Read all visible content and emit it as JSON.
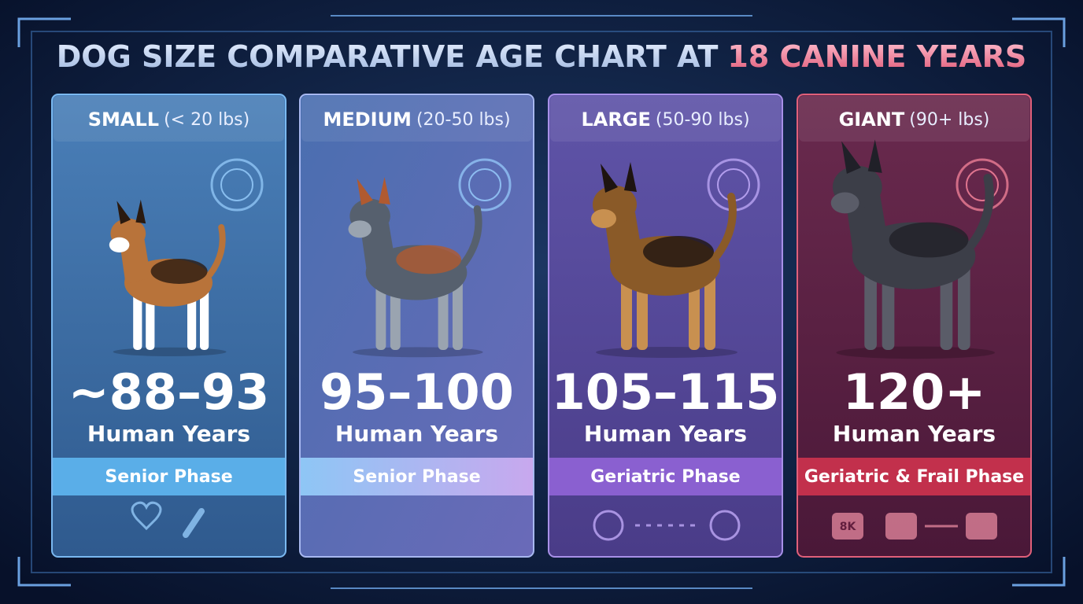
{
  "header": {
    "title_main": "DOG SIZE COMPARATIVE AGE CHART AT",
    "title_highlight": "18 CANINE YEARS"
  },
  "cards": [
    {
      "size": "SMALL",
      "weight": "(< 20 lbs)",
      "age": "~88–93",
      "unit": "Human Years",
      "phase": "Senior Phase"
    },
    {
      "size": "MEDIUM",
      "weight": "(20-50 lbs)",
      "age": "95–100",
      "unit": "Human Years",
      "phase": "Senior Phase"
    },
    {
      "size": "LARGE",
      "weight": "(50-90 lbs)",
      "age": "105–115",
      "unit": "Human Years",
      "phase": "Geriatric Phase"
    },
    {
      "size": "GIANT",
      "weight": "(90+ lbs)",
      "age": "120+",
      "unit": "Human Years",
      "phase": "Geriatric & Frail Phase",
      "icon_text": "8K"
    }
  ]
}
